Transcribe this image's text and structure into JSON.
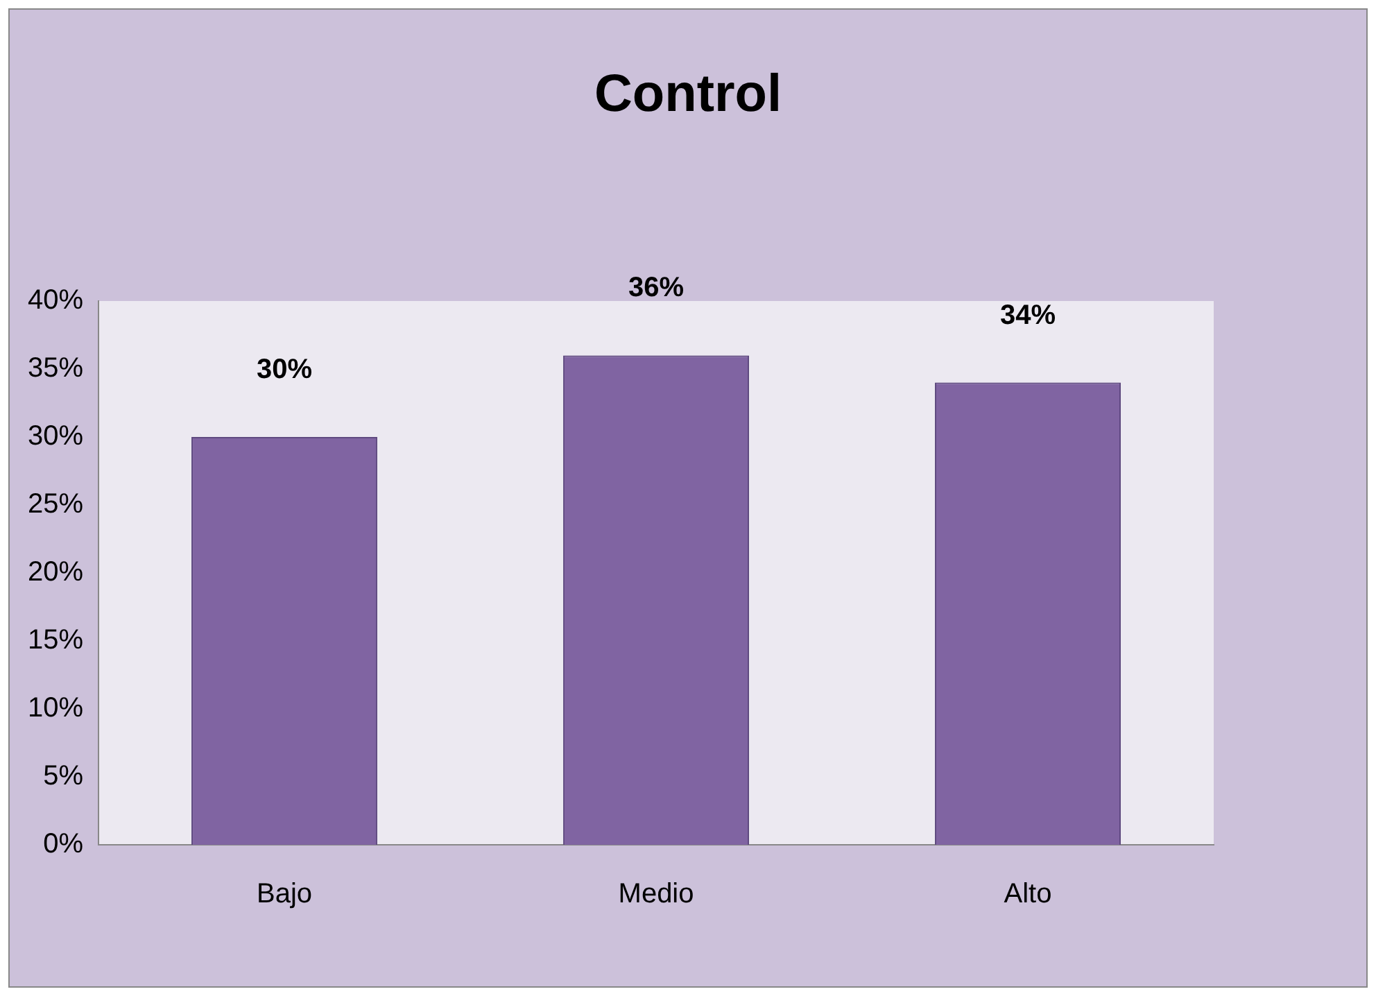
{
  "chart_data": {
    "type": "bar",
    "title": "Control",
    "categories": [
      "Bajo",
      "Medio",
      "Alto"
    ],
    "values": [
      30,
      36,
      34
    ],
    "value_labels": [
      "30%",
      "36%",
      "34%"
    ],
    "color": "#8064a2",
    "ylim": [
      0,
      40
    ],
    "yticks": [
      {
        "value": 0,
        "label": "0%"
      },
      {
        "value": 5,
        "label": "5%"
      },
      {
        "value": 10,
        "label": "10%"
      },
      {
        "value": 15,
        "label": "15%"
      },
      {
        "value": 20,
        "label": "20%"
      },
      {
        "value": 25,
        "label": "25%"
      },
      {
        "value": 30,
        "label": "30%"
      },
      {
        "value": 35,
        "label": "35%"
      },
      {
        "value": 40,
        "label": "40%"
      }
    ],
    "grid": false,
    "legend": false
  }
}
